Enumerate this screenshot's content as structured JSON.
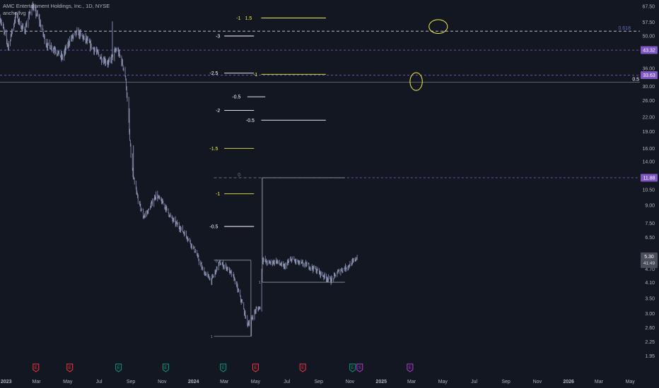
{
  "header": {
    "title": "AMC Entertainment Holdings, Inc., 1D, NYSE",
    "indicator": "anche/fvg"
  },
  "colors": {
    "background": "#131722",
    "candle": "#8f97b8",
    "axis_text": "#b2b5be",
    "purple": "#7e57c2",
    "yellow": "#f0f04a",
    "white": "#ffffff",
    "grey_dash": "#d1d4dc",
    "earnings_red": "#f23645",
    "earnings_green": "#089981",
    "dividend": "#b33cd2"
  },
  "chart_data": {
    "type": "candlestick",
    "y_scale": "log",
    "ylim": [
      1.85,
      72
    ],
    "x_start": "2022-12-20",
    "x_end": "2026-05-20",
    "y_ticks": [
      "67.50",
      "57.50",
      "50.00",
      "36.00",
      "30.00",
      "26.00",
      "22.00",
      "19.00",
      "16.00",
      "14.00",
      "10.50",
      "9.00",
      "7.50",
      "6.50",
      "4.70",
      "4.10",
      "3.50",
      "3.00",
      "2.60",
      "2.25",
      "1.95"
    ],
    "x_ticks": [
      {
        "label": "2023",
        "date": "2023-01-01",
        "bold": true
      },
      {
        "label": "Mar",
        "date": "2023-03-01"
      },
      {
        "label": "May",
        "date": "2023-05-01"
      },
      {
        "label": "Jul",
        "date": "2023-07-01"
      },
      {
        "label": "Sep",
        "date": "2023-09-01"
      },
      {
        "label": "Nov",
        "date": "2023-11-01"
      },
      {
        "label": "2024",
        "date": "2024-01-01",
        "bold": true
      },
      {
        "label": "Mar",
        "date": "2024-03-01"
      },
      {
        "label": "May",
        "date": "2024-05-01"
      },
      {
        "label": "Jul",
        "date": "2024-07-01"
      },
      {
        "label": "Sep",
        "date": "2024-09-01"
      },
      {
        "label": "Nov",
        "date": "2024-11-01"
      },
      {
        "label": "2025",
        "date": "2025-01-01",
        "bold": true
      },
      {
        "label": "Mar",
        "date": "2025-03-01"
      },
      {
        "label": "May",
        "date": "2025-05-01"
      },
      {
        "label": "Jul",
        "date": "2025-07-01"
      },
      {
        "label": "Sep",
        "date": "2025-09-01"
      },
      {
        "label": "Nov",
        "date": "2025-11-01"
      },
      {
        "label": "2026",
        "date": "2026-01-01",
        "bold": true
      },
      {
        "label": "Mar",
        "date": "2026-03-01"
      },
      {
        "label": "May",
        "date": "2026-05-01"
      }
    ],
    "price_path": [
      [
        "2022-12-20",
        60
      ],
      [
        "2023-01-05",
        45
      ],
      [
        "2023-01-20",
        62
      ],
      [
        "2023-02-05",
        52
      ],
      [
        "2023-02-20",
        68
      ],
      [
        "2023-03-05",
        60
      ],
      [
        "2023-03-20",
        46
      ],
      [
        "2023-04-05",
        44
      ],
      [
        "2023-04-20",
        40
      ],
      [
        "2023-05-05",
        48
      ],
      [
        "2023-05-20",
        52
      ],
      [
        "2023-06-05",
        48
      ],
      [
        "2023-06-20",
        44
      ],
      [
        "2023-07-05",
        40
      ],
      [
        "2023-07-20",
        38
      ],
      [
        "2023-08-05",
        44
      ],
      [
        "2023-08-15",
        38
      ],
      [
        "2023-08-20",
        35
      ],
      [
        "2023-08-23",
        30
      ],
      [
        "2023-08-26",
        24
      ],
      [
        "2023-08-31",
        16
      ],
      [
        "2023-09-05",
        12
      ],
      [
        "2023-09-15",
        9.5
      ],
      [
        "2023-09-25",
        8
      ],
      [
        "2023-10-05",
        8.5
      ],
      [
        "2023-10-20",
        10
      ],
      [
        "2023-11-05",
        9
      ],
      [
        "2023-11-20",
        7.8
      ],
      [
        "2023-12-05",
        7.2
      ],
      [
        "2023-12-20",
        6.5
      ],
      [
        "2024-01-05",
        5.6
      ],
      [
        "2024-01-20",
        4.6
      ],
      [
        "2024-02-05",
        4.2
      ],
      [
        "2024-02-20",
        5.0
      ],
      [
        "2024-03-05",
        4.8
      ],
      [
        "2024-03-20",
        4.3
      ],
      [
        "2024-04-05",
        3.3
      ],
      [
        "2024-04-15",
        2.7
      ],
      [
        "2024-04-22",
        2.8
      ],
      [
        "2024-05-01",
        3.1
      ],
      [
        "2024-05-10",
        3.2
      ],
      [
        "2024-05-14",
        5.2
      ],
      [
        "2024-05-25",
        5.0
      ],
      [
        "2024-06-10",
        5.1
      ],
      [
        "2024-06-25",
        4.8
      ],
      [
        "2024-07-10",
        5.2
      ],
      [
        "2024-07-25",
        5.0
      ],
      [
        "2024-08-10",
        4.9
      ],
      [
        "2024-08-25",
        4.7
      ],
      [
        "2024-09-10",
        4.4
      ],
      [
        "2024-09-25",
        4.2
      ],
      [
        "2024-10-10",
        4.6
      ],
      [
        "2024-10-25",
        4.8
      ],
      [
        "2024-11-05",
        5.0
      ],
      [
        "2024-11-15",
        5.3
      ]
    ],
    "wick_extremes": [
      {
        "date": "2023-07-27",
        "price": 58
      },
      {
        "date": "2023-08-29",
        "price": 24
      },
      {
        "date": "2023-09-06",
        "price": 16.5
      },
      {
        "date": "2024-04-23",
        "price": 2.38
      },
      {
        "date": "2024-05-14",
        "price": 11.88
      }
    ],
    "last_price": "5.30",
    "last_price_countdown": "41:49",
    "price_tags": [
      {
        "price": 43.32,
        "label": "43.32",
        "color": "purple",
        "style": "dashed"
      },
      {
        "price": 33.63,
        "label": "33.63",
        "color": "purple",
        "style": "dashed"
      },
      {
        "price": 11.88,
        "label": "11.88",
        "color": "purple",
        "style": "dashed"
      }
    ],
    "horizontal_lines": [
      {
        "price": 52.5,
        "from": "2022-12-20",
        "to": "2026-05-20",
        "color": "grey_dash",
        "style": "dashed",
        "label": "0.618",
        "label_date": "2026-04-20",
        "label_color": "#5c6bc0"
      },
      {
        "price": 31.3,
        "from": "2022-12-20",
        "to": "2026-05-20",
        "color": "#787b86",
        "style": "solid",
        "label": "0.5",
        "label_date": "2026-05-12",
        "label_color": "white"
      },
      {
        "price": 11.88,
        "from": "2024-02-10",
        "to": "2024-09-15",
        "color": "#787b86",
        "style": "dashed",
        "label": "0",
        "label_date": "2024-03-30",
        "label_color": "#787b86"
      }
    ],
    "fib_levels": [
      {
        "label": "-1",
        "price": 60,
        "from": "2024-05-12",
        "to": "2024-09-15",
        "color": "yellow",
        "label_date": "2024-04-02"
      },
      {
        "label": "1.5",
        "price": 60,
        "from": "2024-05-12",
        "to": "2024-09-15",
        "color": "yellow",
        "label_date": "2024-04-24"
      },
      {
        "label": "-3",
        "price": 50,
        "from": "2024-03-01",
        "to": "2024-04-28",
        "color": "white",
        "label_date": "2024-02-22"
      },
      {
        "label": "-1",
        "price": 33.9,
        "from": "2024-05-12",
        "to": "2024-09-15",
        "color": "yellow",
        "label_date": "2024-05-05"
      },
      {
        "label": "-2.5",
        "price": 34.3,
        "from": "2024-03-01",
        "to": "2024-04-28",
        "color": "white",
        "label_date": "2024-02-18"
      },
      {
        "label": "-0.5",
        "price": 27,
        "from": "2024-04-15",
        "to": "2024-05-20",
        "color": "white",
        "label_date": "2024-04-02"
      },
      {
        "label": "-2",
        "price": 23.5,
        "from": "2024-03-01",
        "to": "2024-04-28",
        "color": "white",
        "label_date": "2024-02-22"
      },
      {
        "label": "-0.5",
        "price": 21.3,
        "from": "2024-05-12",
        "to": "2024-09-15",
        "color": "white",
        "label_date": "2024-04-29"
      },
      {
        "label": "-1.5",
        "price": 16,
        "from": "2024-03-01",
        "to": "2024-04-28",
        "color": "yellow",
        "label_date": "2024-02-18"
      },
      {
        "label": "-1",
        "price": 10.1,
        "from": "2024-03-01",
        "to": "2024-04-28",
        "color": "yellow",
        "label_date": "2024-02-22"
      },
      {
        "label": "-0.5",
        "price": 7.25,
        "from": "2024-03-01",
        "to": "2024-04-28",
        "color": "white",
        "label_date": "2024-02-18"
      }
    ],
    "box_left": {
      "top": 5.15,
      "bottom": 2.38,
      "from": "2024-02-10",
      "to": "2024-04-22",
      "top_label": "0",
      "bottom_label": "1"
    },
    "box_right": {
      "top": 11.88,
      "bottom": 4.12,
      "from": "2024-05-14",
      "to": "2024-10-22",
      "bottom_label": "1"
    },
    "circles": [
      {
        "date": "2025-04-22",
        "price": 55,
        "rx_days": 18,
        "ry_log": 0.07,
        "label": "circle-top"
      },
      {
        "date": "2025-03-10",
        "price": 31.5,
        "rx_days": 12,
        "ry_log": 0.09,
        "label": "circle-mid"
      }
    ],
    "event_markers": [
      {
        "date": "2023-02-28",
        "type": "E",
        "color": "earnings_red"
      },
      {
        "date": "2023-05-05",
        "type": "E",
        "color": "earnings_red"
      },
      {
        "date": "2023-08-08",
        "type": "E",
        "color": "earnings_green"
      },
      {
        "date": "2023-11-08",
        "type": "E",
        "color": "earnings_green"
      },
      {
        "date": "2024-02-28",
        "type": "E",
        "color": "earnings_green"
      },
      {
        "date": "2024-05-01",
        "type": "E",
        "color": "earnings_red"
      },
      {
        "date": "2024-08-01",
        "type": "E",
        "color": "earnings_red"
      },
      {
        "date": "2024-11-06",
        "type": "E",
        "color": "earnings_green"
      },
      {
        "date": "2024-11-20",
        "type": "S",
        "color": "dividend"
      },
      {
        "date": "2025-02-26",
        "type": "E",
        "color": "dividend"
      }
    ]
  }
}
